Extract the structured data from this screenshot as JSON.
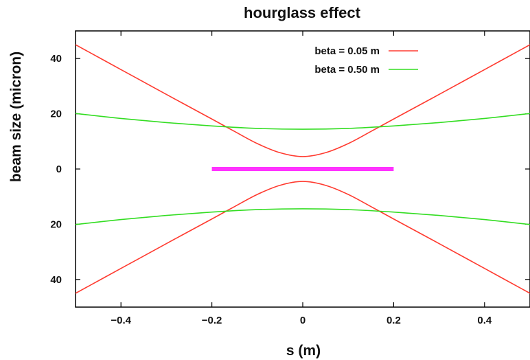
{
  "chart_data": {
    "type": "line",
    "title": "hourglass effect",
    "xlabel": "s (m)",
    "ylabel": "beam size (micron)",
    "xlim": [
      -0.5,
      0.5
    ],
    "ylim": [
      -50,
      50
    ],
    "x_ticks": [
      -0.4,
      -0.2,
      0,
      0.2,
      0.4
    ],
    "x_tick_labels": [
      "−0.4",
      "−0.2",
      "0",
      "0.2",
      "0.4"
    ],
    "y_ticks": [
      40,
      20,
      0,
      -20,
      -40
    ],
    "y_tick_labels": [
      "40",
      "20",
      "0",
      "20",
      "40"
    ],
    "grid": false,
    "legend_position": "top-right",
    "series": [
      {
        "name": "beta = 0.05 m",
        "color": "#ff3b30",
        "x": [
          -0.5,
          -0.4,
          -0.3,
          -0.2,
          -0.15,
          -0.1,
          -0.05,
          0,
          0.05,
          0.1,
          0.15,
          0.2,
          0.3,
          0.4,
          0.5
        ],
        "y": [
          45,
          36,
          27,
          18.1,
          13.6,
          9.2,
          5.9,
          4.5,
          5.9,
          9.2,
          13.6,
          18.1,
          27,
          36,
          45
        ],
        "mirror": true
      },
      {
        "name": "beta = 0.50 m",
        "color": "#33dd22",
        "x": [
          -0.5,
          -0.4,
          -0.3,
          -0.2,
          -0.1,
          0,
          0.1,
          0.2,
          0.3,
          0.4,
          0.5
        ],
        "y": [
          20.1,
          18.3,
          16.8,
          15.6,
          14.7,
          14.4,
          14.7,
          15.6,
          16.8,
          18.3,
          20.1
        ],
        "mirror": true
      },
      {
        "color": "#ff33ff",
        "x": [
          -0.2,
          0.2
        ],
        "y": [
          0,
          0
        ],
        "mirror": false
      }
    ]
  }
}
